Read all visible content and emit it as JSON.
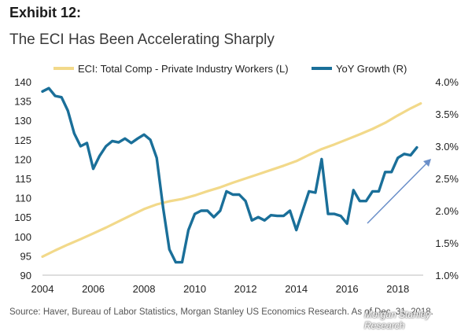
{
  "header": {
    "exhibit": "Exhibit 12:",
    "title": "The ECI Has Been Accelerating Sharply"
  },
  "footer": {
    "source": "Source: Haver, Bureau of Labor Statistics, Morgan Stanley US Economics Research. As of Dec. 31, 2018.",
    "watermark": "Morgan Stanley Research"
  },
  "colors": {
    "eci": "#f2d98a",
    "yoy": "#1a6f99",
    "arrow": "#6a8fc9"
  },
  "chart_data": {
    "type": "line",
    "title": "The ECI Has Been Accelerating Sharply",
    "xlabel": "",
    "ylabel_left": "",
    "ylabel_right": "",
    "xlim": [
      2004,
      2019
    ],
    "ylim_left": [
      90,
      140
    ],
    "ylim_right": [
      1.0,
      4.0
    ],
    "x_ticks": [
      2004,
      2006,
      2008,
      2010,
      2012,
      2014,
      2016,
      2018
    ],
    "y_ticks_left": [
      90,
      95,
      100,
      105,
      110,
      115,
      120,
      125,
      130,
      135,
      140
    ],
    "y_ticks_right": [
      "1.0%",
      "1.5%",
      "2.0%",
      "2.5%",
      "3.0%",
      "3.5%",
      "4.0%"
    ],
    "y_ticks_right_values": [
      1.0,
      1.5,
      2.0,
      2.5,
      3.0,
      3.5,
      4.0
    ],
    "grid": false,
    "legend_position": "top",
    "series": [
      {
        "name": "ECI: Total Comp - Private Industry Workers (L)",
        "axis": "left",
        "color": "#f2d98a",
        "x": [
          2004,
          2004.5,
          2005,
          2005.5,
          2006,
          2006.5,
          2007,
          2007.5,
          2008,
          2008.5,
          2009,
          2009.5,
          2010,
          2010.5,
          2011,
          2011.5,
          2012,
          2012.5,
          2013,
          2013.5,
          2014,
          2014.5,
          2015,
          2015.5,
          2016,
          2016.5,
          2017,
          2017.5,
          2018,
          2018.5,
          2018.9
        ],
        "values": [
          94.8,
          96.4,
          97.9,
          99.3,
          100.8,
          102.3,
          103.9,
          105.5,
          107.1,
          108.3,
          109.1,
          109.7,
          110.6,
          111.7,
          112.7,
          113.9,
          115.0,
          116.1,
          117.2,
          118.3,
          119.5,
          121.1,
          122.6,
          123.8,
          125.1,
          126.4,
          127.8,
          129.4,
          131.3,
          133.1,
          134.4
        ]
      },
      {
        "name": "YoY Growth (R)",
        "axis": "right",
        "color": "#1a6f99",
        "x": [
          2004.0,
          2004.25,
          2004.5,
          2004.75,
          2005.0,
          2005.25,
          2005.5,
          2005.75,
          2006.0,
          2006.25,
          2006.5,
          2006.75,
          2007.0,
          2007.25,
          2007.5,
          2007.75,
          2008.0,
          2008.25,
          2008.5,
          2008.75,
          2009.0,
          2009.25,
          2009.5,
          2009.75,
          2010.0,
          2010.25,
          2010.5,
          2010.75,
          2011.0,
          2011.25,
          2011.5,
          2011.75,
          2012.0,
          2012.25,
          2012.5,
          2012.75,
          2013.0,
          2013.25,
          2013.5,
          2013.75,
          2014.0,
          2014.25,
          2014.5,
          2014.75,
          2015.0,
          2015.25,
          2015.5,
          2015.75,
          2016.0,
          2016.25,
          2016.5,
          2016.75,
          2017.0,
          2017.25,
          2017.5,
          2017.75,
          2018.0,
          2018.25,
          2018.5,
          2018.75
        ],
        "values": [
          3.85,
          3.9,
          3.78,
          3.76,
          3.55,
          3.2,
          3.0,
          3.05,
          2.65,
          2.85,
          3.0,
          3.08,
          3.06,
          3.12,
          3.05,
          3.12,
          3.18,
          3.1,
          2.82,
          2.05,
          1.4,
          1.2,
          1.2,
          1.7,
          1.95,
          2.0,
          2.0,
          1.9,
          2.0,
          2.3,
          2.25,
          2.25,
          2.15,
          1.85,
          1.9,
          1.85,
          1.93,
          1.92,
          1.92,
          2.0,
          1.7,
          2.0,
          2.3,
          2.28,
          2.8,
          1.95,
          1.95,
          1.92,
          1.8,
          2.32,
          2.15,
          2.15,
          2.3,
          2.3,
          2.6,
          2.6,
          2.82,
          2.88,
          2.86,
          2.98
        ]
      }
    ]
  }
}
